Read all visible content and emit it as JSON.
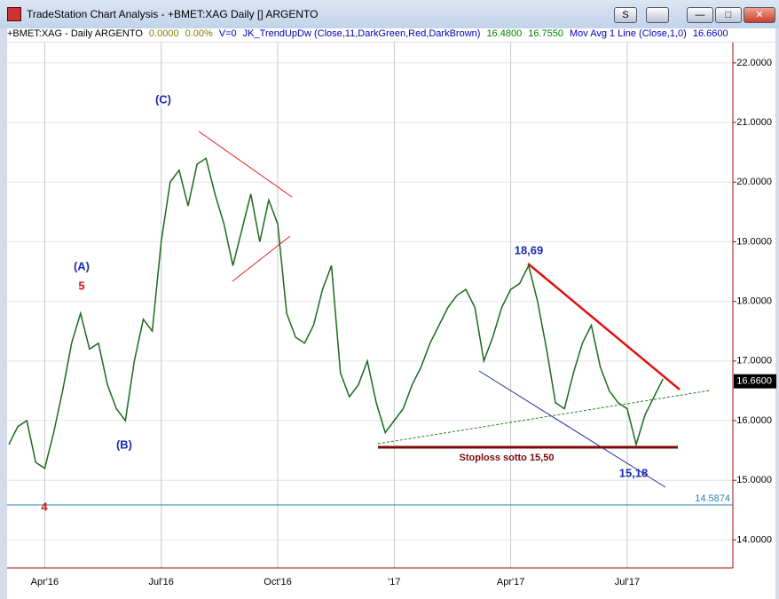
{
  "window": {
    "title": "TradeStation Chart Analysis - +BMET:XAG Daily [] ARGENTO",
    "button": "S"
  },
  "info_line": [
    {
      "text": "+BMET:XAG - Daily  ARGENTO",
      "color": "#000000"
    },
    {
      "text": "0.0000",
      "color": "#808000"
    },
    {
      "text": "0.00%",
      "color": "#808000"
    },
    {
      "text": "V=0",
      "color": "#0000c0"
    },
    {
      "text": "JK_TrendUpDw (Close,11,DarkGreen,Red,DarkBrown)",
      "color": "#0000c0"
    },
    {
      "text": "16.4800",
      "color": "#008000"
    },
    {
      "text": "16.7550",
      "color": "#008000"
    },
    {
      "text": "Mov Avg 1 Line (Close,1,0)",
      "color": "#0000c0"
    },
    {
      "text": "16.6600",
      "color": "#0000c0"
    }
  ],
  "chart_data": {
    "type": "line",
    "categories": [
      null,
      null,
      null,
      null,
      "Apr'16",
      null,
      null,
      null,
      null,
      null,
      null,
      null,
      null,
      null,
      null,
      null,
      null,
      "Jul'16",
      null,
      null,
      null,
      null,
      null,
      null,
      null,
      null,
      null,
      null,
      null,
      null,
      "Oct'16",
      null,
      null,
      null,
      null,
      null,
      null,
      null,
      null,
      null,
      null,
      null,
      null,
      "'17",
      null,
      null,
      null,
      null,
      null,
      null,
      null,
      null,
      null,
      null,
      null,
      null,
      "Apr'17",
      null,
      null,
      null,
      null,
      null,
      null,
      null,
      null,
      null,
      null,
      null,
      null,
      "Jul'17",
      null,
      null,
      null,
      null,
      null,
      null,
      null,
      null,
      null,
      null,
      null
    ],
    "series": [
      {
        "color": "#1a6b1a",
        "values": [
          15.6,
          15.9,
          16.0,
          15.3,
          15.2,
          15.8,
          16.5,
          17.3,
          17.8,
          17.2,
          17.3,
          16.6,
          16.2,
          16.0,
          17.0,
          17.7,
          17.5,
          19.0,
          20.0,
          20.2,
          19.6,
          20.3,
          20.4,
          19.8,
          19.3,
          18.6,
          19.2,
          19.8,
          19.0,
          19.7,
          19.3,
          17.8,
          17.4,
          17.3,
          17.6,
          18.2,
          18.6,
          16.8,
          16.4,
          16.6,
          17.0,
          16.3,
          15.8,
          16.0,
          16.2,
          16.6,
          16.9,
          17.3,
          17.6,
          17.9,
          18.1,
          18.2,
          17.9,
          17.0,
          17.4,
          17.9,
          18.2,
          18.3,
          18.6,
          18.0,
          17.2,
          16.3,
          16.2,
          16.8,
          17.3,
          17.6,
          16.9,
          16.5,
          16.3,
          16.2,
          15.6,
          16.1,
          16.4,
          16.7,
          null,
          null,
          null,
          null,
          null,
          null,
          null
        ]
      }
    ],
    "ylim": [
      13.53,
      22.34
    ],
    "yticks": [
      {
        "value": 14,
        "label": "14.0000"
      },
      {
        "value": 15,
        "label": "15.0000"
      },
      {
        "value": 16,
        "label": "16.0000"
      },
      {
        "value": 17,
        "label": "17.0000"
      },
      {
        "value": 18,
        "label": "18.0000"
      },
      {
        "value": 19,
        "label": "19.0000"
      },
      {
        "value": 20,
        "label": "20.0000"
      },
      {
        "value": 21,
        "label": "21.0000"
      },
      {
        "value": 22,
        "label": "22.0000"
      }
    ],
    "markers": [
      {
        "value": 16.66,
        "label": "16.6600",
        "color": "#000000"
      },
      {
        "value": 14.5874,
        "label": "14.5874",
        "color": "#2a7fb0"
      }
    ],
    "annotations": [
      "(A)",
      "5",
      "(B)",
      "4",
      "(C)",
      "18,69",
      "15,18",
      "Stoploss  sotto 15,50"
    ],
    "grid": true
  }
}
